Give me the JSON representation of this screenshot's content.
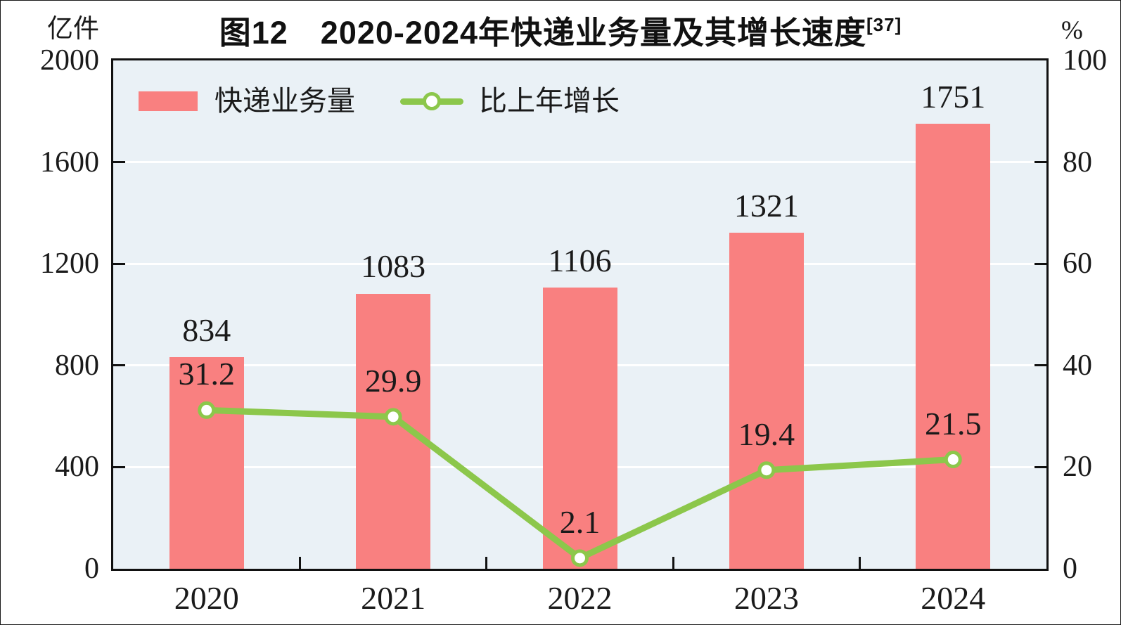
{
  "title": {
    "text": "图12　2020-2024年快递业务量及其增长速度",
    "superscript": "[37]"
  },
  "legend": {
    "items": [
      {
        "label": "快递业务量",
        "type": "bar"
      },
      {
        "label": "比上年增长",
        "type": "line"
      }
    ]
  },
  "chart_data": {
    "type": "bar+line combo",
    "title": "图12 2020-2024年快递业务量及其增长速度[37]",
    "categories": [
      "2020",
      "2021",
      "2022",
      "2023",
      "2024"
    ],
    "series": [
      {
        "name": "快递业务量",
        "type": "bar",
        "axis": "left",
        "values": [
          834,
          1083,
          1106,
          1321,
          1751
        ]
      },
      {
        "name": "比上年增长",
        "type": "line",
        "axis": "right",
        "values": [
          31.2,
          29.9,
          2.1,
          19.4,
          21.5
        ]
      }
    ],
    "left_axis": {
      "unit": "亿件",
      "min": 0,
      "max": 2000,
      "ticks": [
        2000,
        1600,
        1200,
        800,
        400,
        0
      ]
    },
    "right_axis": {
      "unit": "%",
      "min": 0,
      "max": 100,
      "ticks": [
        100,
        80,
        60,
        40,
        20,
        0
      ]
    },
    "grid": "horizontal white gridlines at every tick",
    "legend_position": "top-left inside plot",
    "colors": {
      "bar": "#F98080",
      "line": "#8CC74B",
      "marker_fill": "#FFFFFF",
      "plot_bg": "#EAF1F6",
      "grid": "#FFFFFF",
      "axis": "#111111",
      "text": "#1A1A1A"
    }
  }
}
